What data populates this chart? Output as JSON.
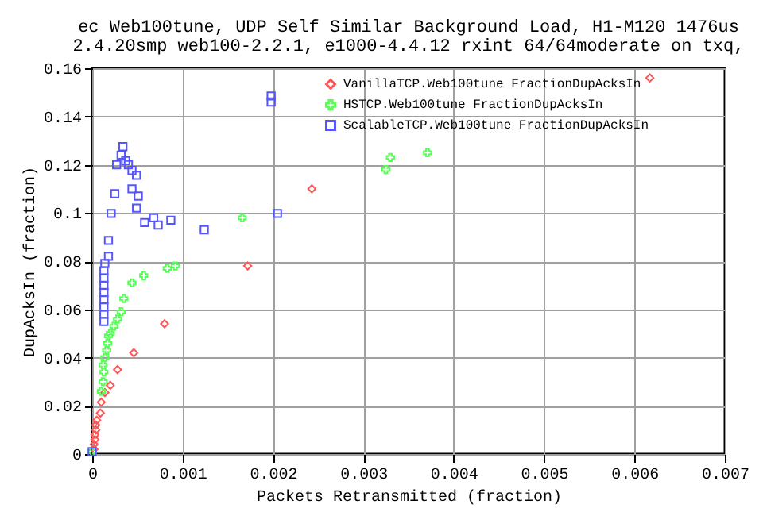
{
  "chart_data": {
    "type": "scatter",
    "title": "ec Web100tune, UDP Self Similar Background Load, H1-M120 1476us",
    "subtitle": "2.4.20smp web100-2.2.1, e1000-4.4.12 rxint 64/64moderate on txq,",
    "xlabel": "Packets Retransmitted (fraction)",
    "ylabel": "DupAcksIn (fraction)",
    "xlim": [
      0,
      0.007
    ],
    "xticks": [
      0,
      0.001,
      0.002,
      0.003,
      0.004,
      0.005,
      0.006,
      0.007
    ],
    "ylim": [
      0,
      0.16
    ],
    "yticks": [
      0,
      0.02,
      0.04,
      0.06,
      0.08,
      0.1,
      0.12,
      0.14,
      0.16
    ],
    "grid": true,
    "legend": "top right",
    "series": [
      {
        "name": "VanillaTCP.Web100tune FractionDupAcksIn",
        "color": "#ff5555",
        "marker": "diamond",
        "x": [
          2e-05,
          2e-05,
          3e-05,
          3e-05,
          4e-05,
          4e-05,
          5e-05,
          9e-05,
          0.0001,
          0.00014,
          0.0002,
          0.00028,
          0.00046,
          0.0008,
          0.00172,
          0.00243,
          0.00617
        ],
        "values": [
          0.002,
          0.004,
          0.006,
          0.008,
          0.01,
          0.012,
          0.014,
          0.017,
          0.0215,
          0.0255,
          0.0285,
          0.035,
          0.042,
          0.054,
          0.078,
          0.11,
          0.156
        ]
      },
      {
        "name": "HSTCP.Web100tune FractionDupAcksIn",
        "color": "#55ff55",
        "marker": "cross",
        "x": [
          0,
          0.0001,
          0.00012,
          0.00013,
          0.00012,
          0.00014,
          0.00016,
          0.00017,
          0.00018,
          0.0002,
          0.00024,
          0.00028,
          0.00032,
          0.00035,
          0.00044,
          0.00057,
          0.00083,
          0.00092,
          0.00166,
          0.00325,
          0.0033,
          0.00371
        ],
        "values": [
          0.001,
          0.026,
          0.03,
          0.034,
          0.037,
          0.04,
          0.043,
          0.046,
          0.049,
          0.05,
          0.053,
          0.056,
          0.059,
          0.0645,
          0.071,
          0.074,
          0.077,
          0.078,
          0.098,
          0.118,
          0.123,
          0.125
        ]
      },
      {
        "name": "ScalableTCP.Web100tune FractionDupAcksIn",
        "color": "#5555ff",
        "marker": "square",
        "x": [
          0,
          0.00013,
          0.00013,
          0.00013,
          0.00013,
          0.00013,
          0.00013,
          0.00013,
          0.00013,
          0.00014,
          0.00018,
          0.00018,
          0.00021,
          0.00025,
          0.00027,
          0.00032,
          0.00034,
          0.00037,
          0.0004,
          0.00044,
          0.00049,
          0.00044,
          0.00051,
          0.00049,
          0.00058,
          0.00068,
          0.00073,
          0.00087,
          0.00124,
          0.00205,
          0.00198,
          0.00198
        ],
        "values": [
          0.001,
          0.055,
          0.058,
          0.061,
          0.064,
          0.067,
          0.07,
          0.073,
          0.076,
          0.079,
          0.082,
          0.0886,
          0.0998,
          0.108,
          0.12,
          0.124,
          0.1275,
          0.1217,
          0.12,
          0.1176,
          0.1156,
          0.11,
          0.107,
          0.102,
          0.096,
          0.098,
          0.095,
          0.097,
          0.093,
          0.0998,
          0.1485,
          0.146
        ]
      }
    ]
  }
}
